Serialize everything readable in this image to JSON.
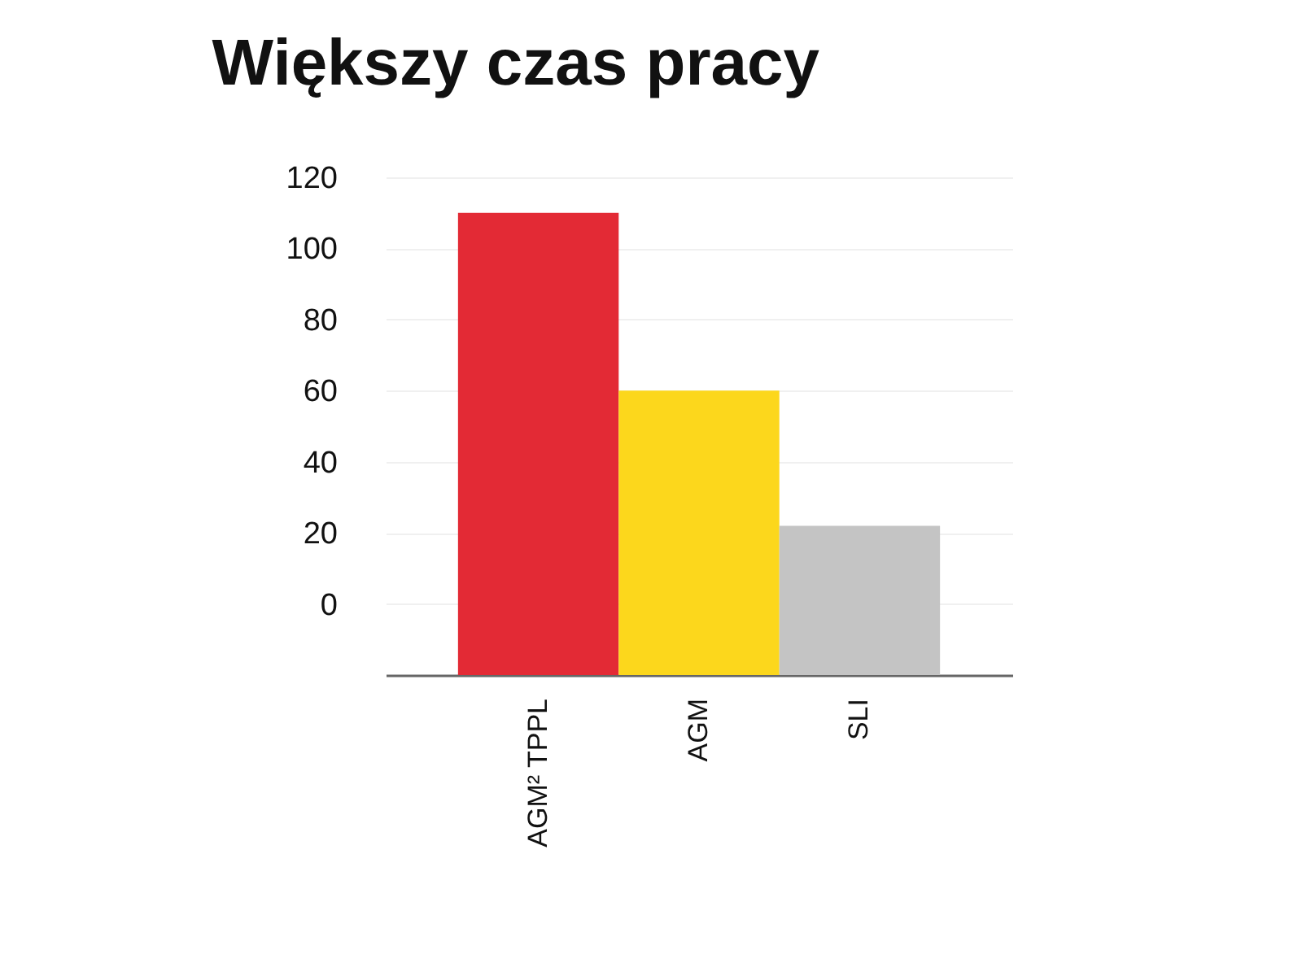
{
  "chart_data": {
    "type": "bar",
    "title": "Większy czas pracy",
    "categories": [
      "AGM² TPPL",
      "AGM",
      "SLI"
    ],
    "base": [
      -20,
      -20,
      -20
    ],
    "values": [
      130,
      80,
      42
    ],
    "colors": [
      "#e32a35",
      "#fcd71c",
      "#c4c4c4"
    ],
    "ylim": [
      -20,
      120
    ],
    "yticks": [
      0,
      20,
      40,
      60,
      80,
      100,
      120
    ],
    "grid": "y"
  }
}
